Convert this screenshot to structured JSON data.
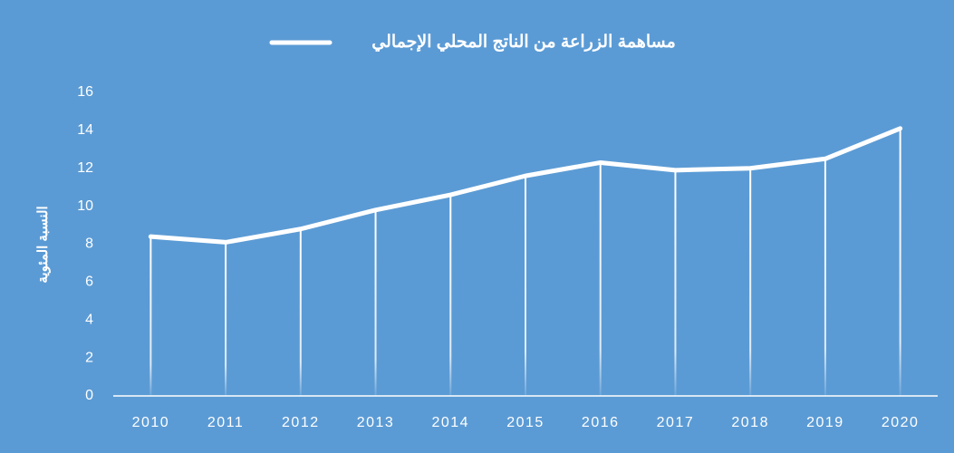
{
  "chart_data": {
    "type": "line",
    "title": "مساهمة الزراعة من الناتج المحلي الإجمالي",
    "y_label": "النسبة المئوية",
    "categories": [
      "2010",
      "2011",
      "2012",
      "2013",
      "2014",
      "2015",
      "2016",
      "2017",
      "2018",
      "2019",
      "2020"
    ],
    "series": [
      {
        "color": "#ffffff",
        "values": [
          8.4,
          8.1,
          8.8,
          9.8,
          10.6,
          11.6,
          12.3,
          11.9,
          12.0,
          12.5,
          14.1
        ]
      }
    ],
    "ylim": [
      0,
      16
    ],
    "yticks": [
      0,
      2,
      4,
      6,
      8,
      10,
      12,
      14,
      16
    ],
    "grid": false,
    "drop_lines": true
  }
}
